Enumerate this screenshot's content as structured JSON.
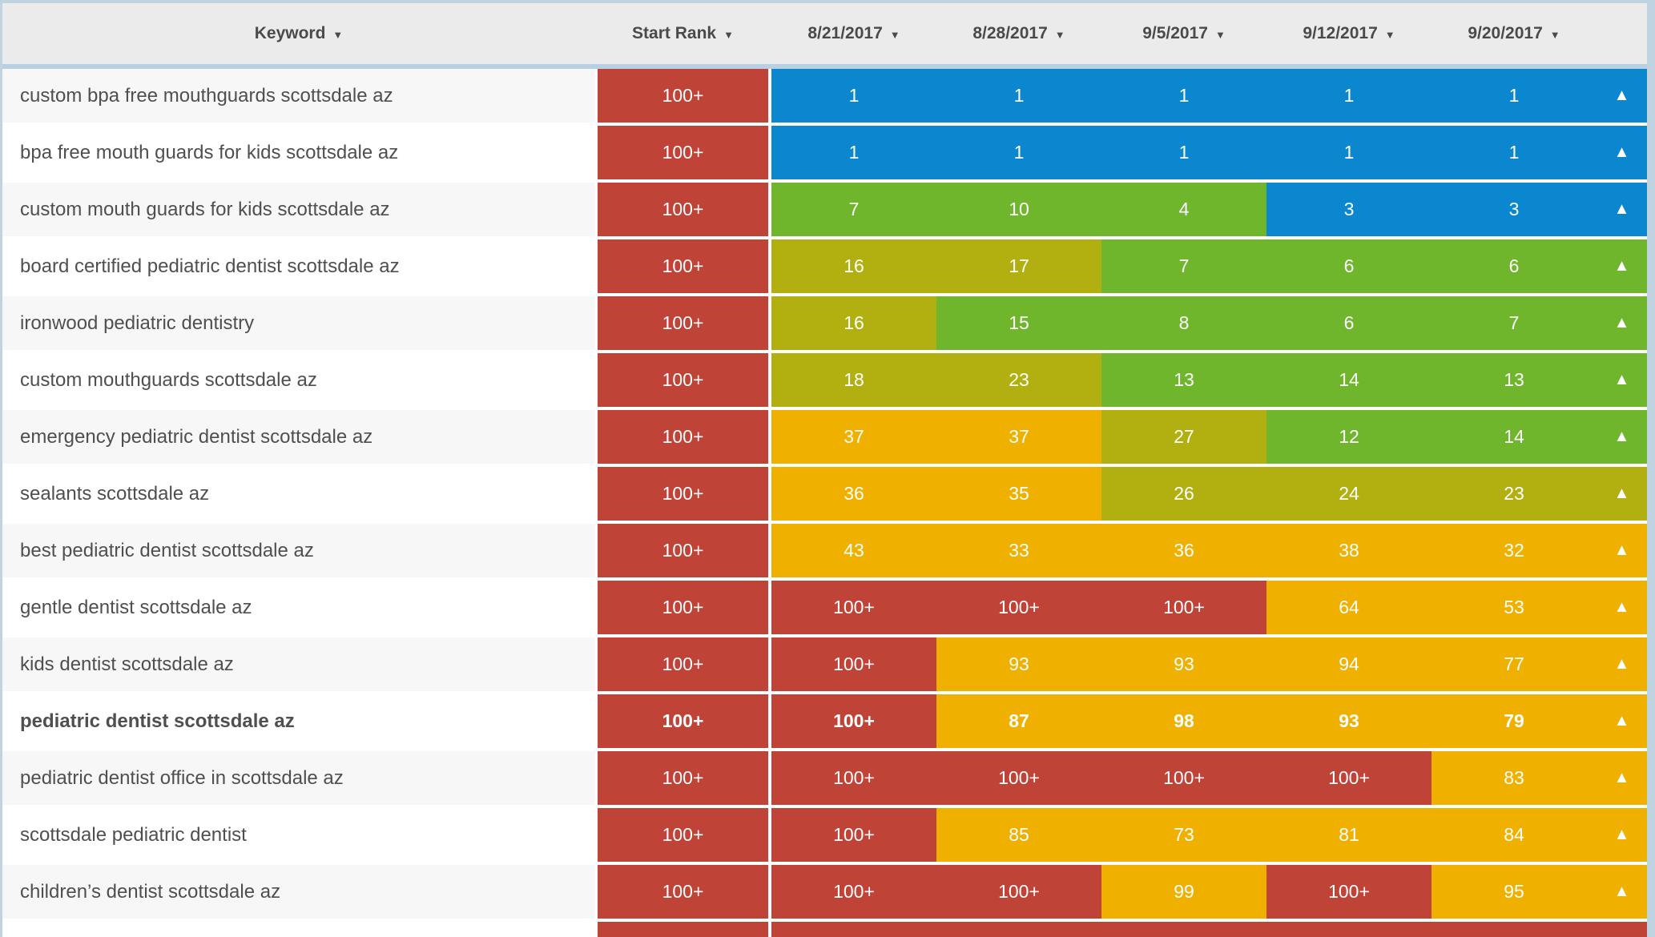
{
  "table": {
    "header": {
      "columns": [
        {
          "label": "Keyword",
          "sort_icon": "▼"
        },
        {
          "label": "Start Rank",
          "sort_icon": "▼"
        },
        {
          "label": "8/21/2017",
          "sort_icon": "▼"
        },
        {
          "label": "8/28/2017",
          "sort_icon": "▼"
        },
        {
          "label": "9/5/2017",
          "sort_icon": "▼"
        },
        {
          "label": "9/12/2017",
          "sort_icon": "▼"
        },
        {
          "label": "9/20/2017",
          "sort_icon": "▼"
        }
      ]
    },
    "trend_icon": "▲",
    "colors": {
      "blue": "#0a87ce",
      "green": "#6fb62c",
      "olive": "#b2b010",
      "amber": "#f0b000",
      "red": "#c04338",
      "header_bg": "#ebebeb",
      "border": "#b9d0e2",
      "row_alt_bg": "#f7f7f7",
      "row_bg": "#ffffff",
      "text": "#4f4f4f"
    },
    "rows": [
      {
        "keyword": "custom bpa free mouthguards scottsdale az",
        "bold": false,
        "start_rank": "100+",
        "cells": [
          {
            "v": "1",
            "c": "blue"
          },
          {
            "v": "1",
            "c": "blue"
          },
          {
            "v": "1",
            "c": "blue"
          },
          {
            "v": "1",
            "c": "blue"
          },
          {
            "v": "1",
            "c": "blue"
          }
        ],
        "trend": "blue"
      },
      {
        "keyword": "bpa free mouth guards for kids scottsdale az",
        "bold": false,
        "start_rank": "100+",
        "cells": [
          {
            "v": "1",
            "c": "blue"
          },
          {
            "v": "1",
            "c": "blue"
          },
          {
            "v": "1",
            "c": "blue"
          },
          {
            "v": "1",
            "c": "blue"
          },
          {
            "v": "1",
            "c": "blue"
          }
        ],
        "trend": "blue"
      },
      {
        "keyword": "custom mouth guards for kids scottsdale az",
        "bold": false,
        "start_rank": "100+",
        "cells": [
          {
            "v": "7",
            "c": "green"
          },
          {
            "v": "10",
            "c": "green"
          },
          {
            "v": "4",
            "c": "green"
          },
          {
            "v": "3",
            "c": "blue"
          },
          {
            "v": "3",
            "c": "blue"
          }
        ],
        "trend": "blue"
      },
      {
        "keyword": "board certified pediatric dentist scottsdale az",
        "bold": false,
        "start_rank": "100+",
        "cells": [
          {
            "v": "16",
            "c": "olive"
          },
          {
            "v": "17",
            "c": "olive"
          },
          {
            "v": "7",
            "c": "green"
          },
          {
            "v": "6",
            "c": "green"
          },
          {
            "v": "6",
            "c": "green"
          }
        ],
        "trend": "green"
      },
      {
        "keyword": "ironwood pediatric dentistry",
        "bold": false,
        "start_rank": "100+",
        "cells": [
          {
            "v": "16",
            "c": "olive"
          },
          {
            "v": "15",
            "c": "green"
          },
          {
            "v": "8",
            "c": "green"
          },
          {
            "v": "6",
            "c": "green"
          },
          {
            "v": "7",
            "c": "green"
          }
        ],
        "trend": "green"
      },
      {
        "keyword": "custom mouthguards scottsdale az",
        "bold": false,
        "start_rank": "100+",
        "cells": [
          {
            "v": "18",
            "c": "olive"
          },
          {
            "v": "23",
            "c": "olive"
          },
          {
            "v": "13",
            "c": "green"
          },
          {
            "v": "14",
            "c": "green"
          },
          {
            "v": "13",
            "c": "green"
          }
        ],
        "trend": "green"
      },
      {
        "keyword": "emergency pediatric dentist scottsdale az",
        "bold": false,
        "start_rank": "100+",
        "cells": [
          {
            "v": "37",
            "c": "amber"
          },
          {
            "v": "37",
            "c": "amber"
          },
          {
            "v": "27",
            "c": "olive"
          },
          {
            "v": "12",
            "c": "green"
          },
          {
            "v": "14",
            "c": "green"
          }
        ],
        "trend": "green"
      },
      {
        "keyword": "sealants scottsdale az",
        "bold": false,
        "start_rank": "100+",
        "cells": [
          {
            "v": "36",
            "c": "amber"
          },
          {
            "v": "35",
            "c": "amber"
          },
          {
            "v": "26",
            "c": "olive"
          },
          {
            "v": "24",
            "c": "olive"
          },
          {
            "v": "23",
            "c": "olive"
          }
        ],
        "trend": "olive"
      },
      {
        "keyword": "best pediatric dentist scottsdale az",
        "bold": false,
        "start_rank": "100+",
        "cells": [
          {
            "v": "43",
            "c": "amber"
          },
          {
            "v": "33",
            "c": "amber"
          },
          {
            "v": "36",
            "c": "amber"
          },
          {
            "v": "38",
            "c": "amber"
          },
          {
            "v": "32",
            "c": "amber"
          }
        ],
        "trend": "amber"
      },
      {
        "keyword": "gentle dentist scottsdale az",
        "bold": false,
        "start_rank": "100+",
        "cells": [
          {
            "v": "100+",
            "c": "red"
          },
          {
            "v": "100+",
            "c": "red"
          },
          {
            "v": "100+",
            "c": "red"
          },
          {
            "v": "64",
            "c": "amber"
          },
          {
            "v": "53",
            "c": "amber"
          }
        ],
        "trend": "amber"
      },
      {
        "keyword": "kids dentist scottsdale az",
        "bold": false,
        "start_rank": "100+",
        "cells": [
          {
            "v": "100+",
            "c": "red"
          },
          {
            "v": "93",
            "c": "amber"
          },
          {
            "v": "93",
            "c": "amber"
          },
          {
            "v": "94",
            "c": "amber"
          },
          {
            "v": "77",
            "c": "amber"
          }
        ],
        "trend": "amber"
      },
      {
        "keyword": "pediatric dentist scottsdale az",
        "bold": true,
        "start_rank": "100+",
        "cells": [
          {
            "v": "100+",
            "c": "red"
          },
          {
            "v": "87",
            "c": "amber"
          },
          {
            "v": "98",
            "c": "amber"
          },
          {
            "v": "93",
            "c": "amber"
          },
          {
            "v": "79",
            "c": "amber"
          }
        ],
        "trend": "amber"
      },
      {
        "keyword": "pediatric dentist office in scottsdale az",
        "bold": false,
        "start_rank": "100+",
        "cells": [
          {
            "v": "100+",
            "c": "red"
          },
          {
            "v": "100+",
            "c": "red"
          },
          {
            "v": "100+",
            "c": "red"
          },
          {
            "v": "100+",
            "c": "red"
          },
          {
            "v": "83",
            "c": "amber"
          }
        ],
        "trend": "amber"
      },
      {
        "keyword": "scottsdale pediatric dentist",
        "bold": false,
        "start_rank": "100+",
        "cells": [
          {
            "v": "100+",
            "c": "red"
          },
          {
            "v": "85",
            "c": "amber"
          },
          {
            "v": "73",
            "c": "amber"
          },
          {
            "v": "81",
            "c": "amber"
          },
          {
            "v": "84",
            "c": "amber"
          }
        ],
        "trend": "amber"
      },
      {
        "keyword": "children’s dentist scottsdale az",
        "bold": false,
        "start_rank": "100+",
        "cells": [
          {
            "v": "100+",
            "c": "red"
          },
          {
            "v": "100+",
            "c": "red"
          },
          {
            "v": "99",
            "c": "amber"
          },
          {
            "v": "100+",
            "c": "red"
          },
          {
            "v": "95",
            "c": "amber"
          }
        ],
        "trend": "amber"
      },
      {
        "keyword": "",
        "bold": false,
        "partial": true,
        "start_rank": "",
        "cells": [
          {
            "v": "",
            "c": "red"
          },
          {
            "v": "",
            "c": "red"
          },
          {
            "v": "",
            "c": "red"
          },
          {
            "v": "",
            "c": "red"
          },
          {
            "v": "",
            "c": "red"
          }
        ],
        "trend": "red",
        "trend_hidden": true
      }
    ]
  }
}
